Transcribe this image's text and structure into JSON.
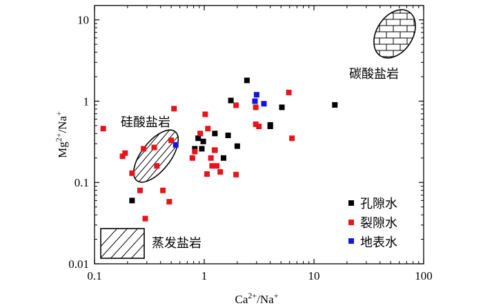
{
  "chart_data": {
    "type": "scatter",
    "xscale": "log",
    "yscale": "log",
    "xlim": [
      0.1,
      100
    ],
    "ylim": [
      0.01,
      15
    ],
    "xlabel": "Ca²⁺/Na⁺",
    "ylabel": "Mg²⁺/Na⁺",
    "xticks": [
      {
        "value": 0.1,
        "label": "0.1"
      },
      {
        "value": 1,
        "label": "1"
      },
      {
        "value": 10,
        "label": "10"
      },
      {
        "value": 100,
        "label": "100"
      }
    ],
    "yticks": [
      {
        "value": 0.01,
        "label": "0.01"
      },
      {
        "value": 0.1,
        "label": "0.1"
      },
      {
        "value": 1,
        "label": "1"
      },
      {
        "value": 10,
        "label": "10"
      }
    ],
    "legend_position": "bottom-right",
    "series": [
      {
        "name": "孔隙水",
        "color": "#000000",
        "points": [
          [
            0.22,
            0.06
          ],
          [
            0.82,
            0.26
          ],
          [
            0.88,
            0.35
          ],
          [
            0.95,
            0.26
          ],
          [
            0.98,
            0.32
          ],
          [
            1.25,
            0.4
          ],
          [
            1.25,
            0.25
          ],
          [
            1.5,
            0.2
          ],
          [
            1.65,
            0.38
          ],
          [
            1.75,
            1.02
          ],
          [
            2.0,
            0.28
          ],
          [
            2.45,
            1.8
          ],
          [
            4.0,
            0.49
          ],
          [
            4.0,
            0.51
          ],
          [
            5.1,
            0.84
          ],
          [
            15.5,
            0.9
          ]
        ]
      },
      {
        "name": "裂隙水",
        "color": "#e8141b",
        "points": [
          [
            0.12,
            0.46
          ],
          [
            0.18,
            0.21
          ],
          [
            0.19,
            0.23
          ],
          [
            0.22,
            0.13
          ],
          [
            0.26,
            0.08
          ],
          [
            0.28,
            0.26
          ],
          [
            0.29,
            0.036
          ],
          [
            0.35,
            0.27
          ],
          [
            0.37,
            0.16
          ],
          [
            0.42,
            0.08
          ],
          [
            0.48,
            0.058
          ],
          [
            0.5,
            0.33
          ],
          [
            0.53,
            0.81
          ],
          [
            0.78,
            0.2
          ],
          [
            0.82,
            0.24
          ],
          [
            0.92,
            0.4
          ],
          [
            1.02,
            0.69
          ],
          [
            1.06,
            0.127
          ],
          [
            1.08,
            0.46
          ],
          [
            1.15,
            0.2
          ],
          [
            1.18,
            0.16
          ],
          [
            1.24,
            0.25
          ],
          [
            1.3,
            0.16
          ],
          [
            1.4,
            0.135
          ],
          [
            1.95,
            0.89
          ],
          [
            1.95,
            0.125
          ],
          [
            2.95,
            0.52
          ],
          [
            2.95,
            0.84
          ],
          [
            3.15,
            0.49
          ],
          [
            5.9,
            1.28
          ],
          [
            6.3,
            0.35
          ]
        ]
      },
      {
        "name": "地表水",
        "color": "#1414e0",
        "points": [
          [
            0.55,
            0.29
          ],
          [
            2.9,
            1.0
          ],
          [
            3.0,
            1.2
          ],
          [
            3.5,
            0.93
          ]
        ]
      }
    ],
    "annotations": [
      {
        "text": "碳酸盐岩"
      },
      {
        "text": "硅酸盐岩"
      },
      {
        "text": "蒸发盐岩"
      }
    ]
  }
}
